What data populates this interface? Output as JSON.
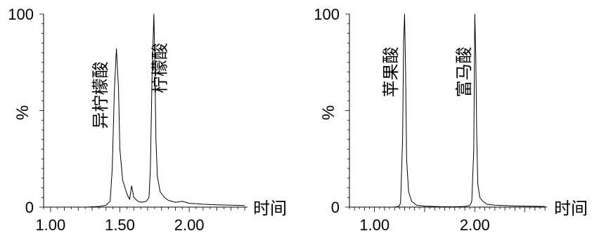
{
  "chart_data": [
    {
      "type": "line",
      "title": "",
      "xlabel": "时间",
      "ylabel": "%",
      "xlim": [
        0.95,
        2.42
      ],
      "ylim": [
        0,
        100
      ],
      "xticks": [
        "1.00",
        "1.50",
        "2.00"
      ],
      "yticks": [
        "0",
        "100"
      ],
      "grid": false,
      "annotations": [
        {
          "text": "异柠檬酸",
          "x": 1.4,
          "y": 58
        },
        {
          "text": "柠檬酸",
          "x": 1.83,
          "y": 72
        }
      ],
      "series": [
        {
          "x": [
            0.97,
            1.05,
            1.15,
            1.25,
            1.35,
            1.4,
            1.43,
            1.445,
            1.46,
            1.475,
            1.49,
            1.5,
            1.52,
            1.55,
            1.57,
            1.585,
            1.6,
            1.63,
            1.66,
            1.69,
            1.71,
            1.72,
            1.732,
            1.745,
            1.752,
            1.76,
            1.77,
            1.79,
            1.82,
            1.85,
            1.9,
            1.95,
            2.0,
            2.1,
            2.2,
            2.3,
            2.4
          ],
          "y": [
            0,
            0,
            0,
            0,
            0.3,
            1,
            3,
            20,
            60,
            82,
            62,
            30,
            14,
            7,
            4,
            11,
            5,
            3,
            2.5,
            3,
            5,
            20,
            68,
            100,
            75,
            35,
            16,
            8,
            5,
            3.5,
            2.5,
            3,
            2,
            1.5,
            1.2,
            1.0,
            0.8
          ]
        }
      ]
    },
    {
      "type": "line",
      "title": "",
      "xlabel": "时间",
      "ylabel": "%",
      "xlim": [
        0.75,
        2.72
      ],
      "ylim": [
        0,
        100
      ],
      "xticks": [
        "1.00",
        "2.00"
      ],
      "yticks": [
        "0",
        "100"
      ],
      "grid": false,
      "annotations": [
        {
          "text": "苹果酸",
          "x": 1.22,
          "y": 70
        },
        {
          "text": "富马酸",
          "x": 1.95,
          "y": 70
        }
      ],
      "series": [
        {
          "x": [
            0.76,
            0.9,
            1.0,
            1.1,
            1.2,
            1.24,
            1.26,
            1.28,
            1.29,
            1.3,
            1.31,
            1.32,
            1.34,
            1.37,
            1.42,
            1.5,
            1.6,
            1.7,
            1.8,
            1.9,
            1.95,
            1.97,
            1.99,
            2.0,
            2.01,
            2.02,
            2.03,
            2.05,
            2.08,
            2.12,
            2.2,
            2.3,
            2.4,
            2.5,
            2.6,
            2.7
          ],
          "y": [
            0,
            0,
            0,
            0,
            0,
            0.3,
            2,
            35,
            85,
            100,
            70,
            25,
            8,
            3,
            1,
            0.5,
            0.3,
            0.2,
            0.2,
            0.3,
            0.8,
            3,
            30,
            100,
            78,
            35,
            12,
            5,
            3,
            1.5,
            1,
            0.8,
            0.6,
            0.5,
            0.4,
            0.3
          ]
        }
      ]
    }
  ]
}
